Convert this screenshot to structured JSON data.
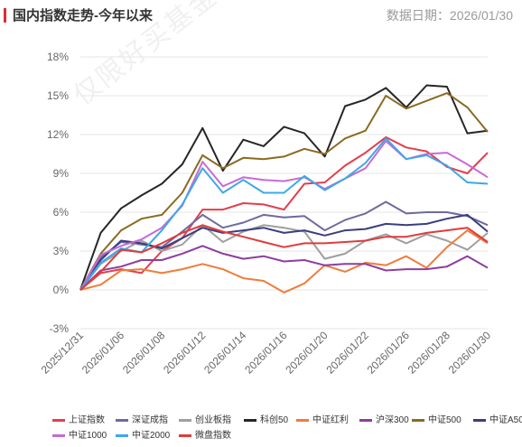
{
  "header": {
    "title": "国内指数走势-今年以来",
    "date_label": "数据日期：2026/01/30",
    "watermark": "仅限好买基金指定接收人"
  },
  "chart_data": {
    "type": "line",
    "title": "国内指数走势-今年以来",
    "xlabel": "",
    "ylabel": "",
    "ylim": [
      -3,
      18
    ],
    "y_ticks": [
      "-3%",
      "0%",
      "3%",
      "6%",
      "9%",
      "12%",
      "15%",
      "18%"
    ],
    "y_tick_values": [
      -3,
      0,
      3,
      6,
      9,
      12,
      15,
      18
    ],
    "x_tick_labels": [
      "2025/12/31",
      "2026/01/06",
      "2026/01/08",
      "2026/01/12",
      "2026/01/14",
      "2026/01/16",
      "2026/01/20",
      "2026/01/22",
      "2026/01/26",
      "2026/01/28",
      "2026/01/30"
    ],
    "x_tick_index": [
      0,
      2,
      4,
      6,
      8,
      10,
      12,
      14,
      16,
      18,
      20
    ],
    "grid": "horizontal",
    "legend_position": "bottom",
    "series": [
      {
        "name": "上证指数",
        "color": "#e0404a",
        "values": [
          0,
          1.3,
          1.6,
          1.3,
          3.0,
          4.0,
          6.2,
          6.2,
          6.7,
          6.6,
          6.2,
          8.2,
          8.3,
          9.6,
          10.6,
          11.8,
          11.0,
          10.7,
          9.5,
          9.0,
          10.6
        ]
      },
      {
        "name": "深证成指",
        "color": "#6e6a9e",
        "values": [
          0,
          2.5,
          3.7,
          3.5,
          3.3,
          4.5,
          5.8,
          4.8,
          5.2,
          5.8,
          5.6,
          5.7,
          4.6,
          5.4,
          5.9,
          6.8,
          5.9,
          6.0,
          6.0,
          5.7,
          5.0
        ]
      },
      {
        "name": "创业板指",
        "color": "#9f9f9f",
        "values": [
          0,
          2.0,
          3.0,
          3.8,
          3.0,
          3.5,
          5.0,
          3.7,
          4.5,
          5.0,
          4.8,
          4.5,
          2.4,
          2.8,
          3.8,
          4.3,
          3.6,
          4.3,
          3.8,
          3.1,
          4.4
        ]
      },
      {
        "name": "科创50",
        "color": "#262626",
        "values": [
          0,
          4.4,
          6.3,
          7.3,
          8.2,
          9.7,
          12.5,
          9.2,
          11.6,
          11.1,
          12.6,
          12.1,
          10.3,
          14.2,
          14.7,
          15.6,
          14.1,
          15.8,
          15.7,
          12.1,
          12.3
        ]
      },
      {
        "name": "中证红利",
        "color": "#ee7d3c",
        "values": [
          0,
          0.4,
          1.5,
          1.6,
          1.3,
          1.6,
          2.0,
          1.6,
          0.9,
          0.7,
          -0.2,
          0.5,
          1.9,
          1.4,
          2.1,
          1.9,
          2.6,
          1.7,
          3.3,
          4.6,
          3.6
        ]
      },
      {
        "name": "沪深300",
        "color": "#8e3d9e",
        "values": [
          0,
          1.5,
          1.8,
          2.3,
          2.3,
          2.8,
          3.4,
          2.8,
          2.4,
          2.6,
          2.2,
          2.3,
          1.9,
          2.0,
          2.0,
          1.5,
          1.6,
          1.6,
          1.8,
          2.6,
          1.7
        ]
      },
      {
        "name": "中证500",
        "color": "#8b6b22",
        "values": [
          0,
          2.8,
          4.6,
          5.5,
          5.8,
          7.5,
          10.4,
          9.4,
          10.2,
          10.1,
          10.3,
          10.9,
          10.5,
          11.7,
          12.3,
          15.0,
          14.0,
          14.6,
          15.2,
          14.1,
          12.2
        ]
      },
      {
        "name": "中证A500",
        "color": "#3b3e7e",
        "values": [
          0,
          2.3,
          3.8,
          3.6,
          3.2,
          4.0,
          4.8,
          4.4,
          4.6,
          4.8,
          4.4,
          4.6,
          4.2,
          4.6,
          4.7,
          5.1,
          5.0,
          5.1,
          5.5,
          5.8,
          4.5
        ]
      },
      {
        "name": "中证1000",
        "color": "#c76ad6",
        "values": [
          0,
          2.7,
          3.4,
          3.9,
          4.8,
          6.5,
          9.9,
          8.0,
          8.7,
          8.5,
          8.4,
          8.7,
          7.8,
          8.6,
          9.4,
          11.5,
          10.1,
          10.5,
          10.6,
          9.7,
          8.7
        ]
      },
      {
        "name": "中证2000",
        "color": "#3ca8e8",
        "values": [
          0,
          2.1,
          3.2,
          2.9,
          4.6,
          6.6,
          9.4,
          7.5,
          8.5,
          7.5,
          7.5,
          8.8,
          7.7,
          8.6,
          9.8,
          11.7,
          10.1,
          10.4,
          9.6,
          8.3,
          8.2
        ]
      },
      {
        "name": "微盘指数",
        "color": "#e03b3b",
        "values": [
          0,
          1.4,
          3.1,
          2.9,
          3.6,
          4.4,
          5.0,
          4.5,
          4.1,
          3.7,
          3.3,
          3.6,
          3.6,
          3.7,
          3.8,
          4.1,
          4.1,
          4.4,
          4.6,
          4.8,
          3.7
        ]
      }
    ]
  }
}
